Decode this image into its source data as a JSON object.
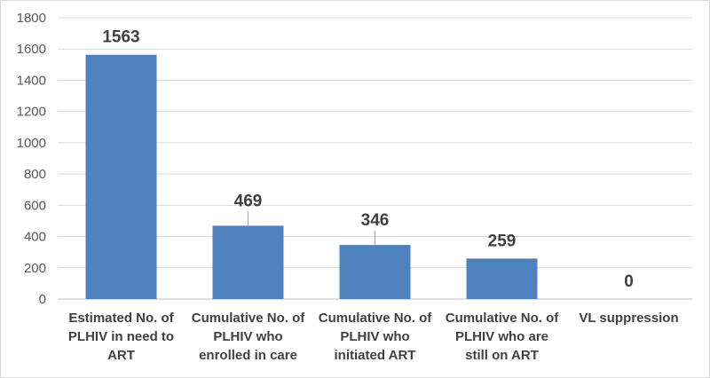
{
  "chart_data": {
    "type": "bar",
    "categories": [
      "Estimated No. of PLHIV in need to ART",
      "Cumulative No. of PLHIV who enrolled in care",
      "Cumulative No. of PLHIV who initiated ART",
      "Cumulative No. of PLHIV who are still on ART",
      "VL suppression"
    ],
    "category_lines": [
      [
        "Estimated No. of",
        "PLHIV in need to",
        "ART"
      ],
      [
        "Cumulative No. of",
        "PLHIV who",
        "enrolled in care"
      ],
      [
        "Cumulative No. of",
        "PLHIV who",
        "initiated ART"
      ],
      [
        "Cumulative No. of",
        "PLHIV who are",
        "still on ART"
      ],
      [
        "VL suppression"
      ]
    ],
    "values": [
      1563,
      469,
      346,
      259,
      0
    ],
    "data_labels": [
      "1563",
      "469",
      "346",
      "259",
      "0"
    ],
    "ylim": [
      0,
      1800
    ],
    "yticks": [
      0,
      200,
      400,
      600,
      800,
      1000,
      1200,
      1400,
      1600,
      1800
    ],
    "grid": true,
    "legend": "none",
    "colors": {
      "bar": "#4e81bd",
      "grid": "#d9d9d9",
      "axis": "#bfbfbf",
      "leader": "#a6a6a6"
    }
  }
}
